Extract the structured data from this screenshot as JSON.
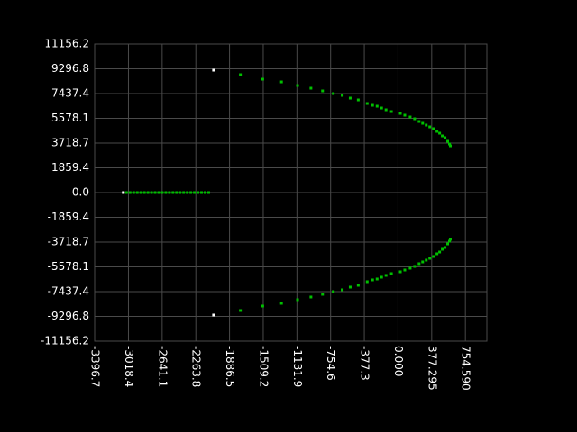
{
  "chart_data": {
    "type": "scatter",
    "xlim": [
      -3396.7,
      995
    ],
    "ylim": [
      -11156.2,
      11156.2
    ],
    "xticks": [
      -3396.7,
      -3018.4,
      -2641.1,
      -2263.8,
      -1886.5,
      -1509.2,
      -1131.9,
      -754.6,
      -377.3,
      {
        "value": 0,
        "label": "0.000"
      },
      377.295,
      {
        "value": 754.59,
        "label": "754.590"
      }
    ],
    "yticks": [
      11156.2,
      9296.8,
      7437.4,
      5578.1,
      3718.7,
      1859.4,
      {
        "value": 0,
        "label": "0.0"
      },
      -1859.4,
      -3718.7,
      -5578.1,
      -7437.4,
      -9296.8,
      -11156.2
    ],
    "grid": true,
    "series": [
      {
        "color": "#00c000",
        "x": [
          -1765,
          -1515,
          -1305,
          -1125,
          -975,
          -845,
          -725,
          -625,
          -535,
          -445,
          -345,
          -285,
          -234,
          -184,
          -134,
          -74,
          26,
          76,
          136,
          186,
          236,
          276,
          316,
          356,
          396,
          436,
          466,
          496,
          526,
          556,
          576,
          586,
          -1765,
          -1515,
          -1305,
          -1125,
          -975,
          -845,
          -725,
          -625,
          -535,
          -445,
          -345,
          -285,
          -234,
          -184,
          -134,
          -74,
          26,
          76,
          136,
          186,
          236,
          276,
          316,
          356,
          396,
          436,
          466,
          496,
          526,
          556,
          576,
          586,
          -3040,
          -3000,
          -2960,
          -2920,
          -2880,
          -2840,
          -2800,
          -2760,
          -2720,
          -2680,
          -2640,
          -2600,
          -2560,
          -2520,
          -2480,
          -2440,
          -2400,
          -2360,
          -2320,
          -2280,
          -2240,
          -2200,
          -2160,
          -2120
        ],
        "y": [
          8856,
          8518,
          8315,
          8044,
          7842,
          7639,
          7436,
          7301,
          7098,
          6963,
          6692,
          6557,
          6490,
          6354,
          6219,
          6084,
          5949,
          5814,
          5678,
          5543,
          5340,
          5205,
          5070,
          4935,
          4800,
          4597,
          4462,
          4259,
          4124,
          3853,
          3650,
          3515,
          -8856,
          -8518,
          -8315,
          -8044,
          -7842,
          -7639,
          -7436,
          -7301,
          -7098,
          -6963,
          -6692,
          -6557,
          -6490,
          -6354,
          -6219,
          -6084,
          -5949,
          -5814,
          -5678,
          -5543,
          -5340,
          -5205,
          -5070,
          -4935,
          -4800,
          -4597,
          -4462,
          -4259,
          -4124,
          -3853,
          -3650,
          -3515,
          0,
          0,
          0,
          0,
          0,
          0,
          0,
          0,
          0,
          0,
          0,
          0,
          0,
          0,
          0,
          0,
          0,
          0,
          0,
          0,
          0,
          0,
          0,
          0
        ]
      },
      {
        "color": "#ffffff",
        "x": [
          -3076,
          -2065,
          -2065
        ],
        "y": [
          0,
          9195,
          -9195
        ]
      }
    ]
  }
}
